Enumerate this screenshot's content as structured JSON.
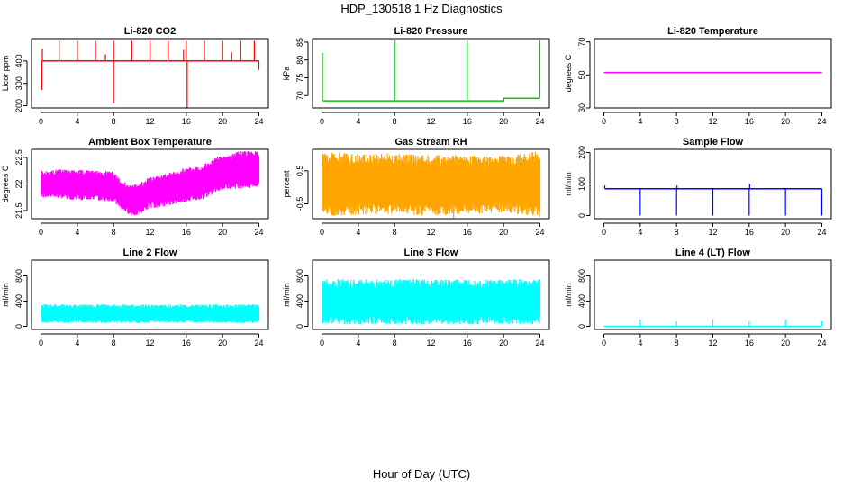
{
  "figure": {
    "title": "HDP_130518  1 Hz Diagnostics",
    "x_axis_title": "Hour of Day (UTC)"
  },
  "chart_data": [
    {
      "id": "co2",
      "type": "line",
      "title": "Li-820 CO2",
      "ylabel": "Licor ppm",
      "color": "#ff0000",
      "xlim": [
        0,
        24
      ],
      "xticks": [
        0,
        4,
        8,
        12,
        16,
        20,
        24
      ],
      "ylim": [
        190,
        500
      ],
      "yticks": [
        200,
        300,
        400
      ],
      "baseline": [
        [
          0.1,
          400
        ],
        [
          24,
          400
        ]
      ],
      "spikes": [
        {
          "x": 0.1,
          "from": 400,
          "to": 270
        },
        {
          "x": 0.15,
          "from": 400,
          "to": 455
        },
        {
          "x": 2.0,
          "from": 400,
          "to": 490
        },
        {
          "x": 4.0,
          "from": 400,
          "to": 490
        },
        {
          "x": 6.0,
          "from": 400,
          "to": 490
        },
        {
          "x": 7.1,
          "from": 400,
          "to": 430
        },
        {
          "x": 8.0,
          "from": 400,
          "to": 490
        },
        {
          "x": 8.0,
          "from": 400,
          "to": 210
        },
        {
          "x": 10.0,
          "from": 400,
          "to": 490
        },
        {
          "x": 12.0,
          "from": 400,
          "to": 490
        },
        {
          "x": 14.0,
          "from": 400,
          "to": 490
        },
        {
          "x": 15.7,
          "from": 400,
          "to": 450
        },
        {
          "x": 16.0,
          "from": 400,
          "to": 490
        },
        {
          "x": 16.1,
          "from": 400,
          "to": 190
        },
        {
          "x": 18.0,
          "from": 400,
          "to": 490
        },
        {
          "x": 20.0,
          "from": 400,
          "to": 490
        },
        {
          "x": 21.0,
          "from": 400,
          "to": 440
        },
        {
          "x": 22.0,
          "from": 400,
          "to": 490
        },
        {
          "x": 23.5,
          "from": 400,
          "to": 490
        },
        {
          "x": 24.0,
          "from": 400,
          "to": 360
        }
      ]
    },
    {
      "id": "pressure",
      "type": "line",
      "title": "Li-820 Pressure",
      "ylabel": "kPa",
      "color": "#00cc00",
      "xlim": [
        0,
        24
      ],
      "xticks": [
        0,
        4,
        8,
        12,
        16,
        20,
        24
      ],
      "ylim": [
        66.5,
        86
      ],
      "yticks": [
        70,
        75,
        80,
        85
      ],
      "baseline": [
        [
          0.1,
          68.5
        ],
        [
          20.0,
          68.5
        ],
        [
          20.0,
          69.2
        ],
        [
          23.9,
          69.2
        ]
      ],
      "spikes": [
        {
          "x": 0.05,
          "from": 68.5,
          "to": 82
        },
        {
          "x": 8.0,
          "from": 68.5,
          "to": 85.5
        },
        {
          "x": 16.0,
          "from": 68.5,
          "to": 85.5
        },
        {
          "x": 24.0,
          "from": 69.2,
          "to": 85.5
        }
      ]
    },
    {
      "id": "temp820",
      "type": "line",
      "title": "Li-820 Temperature",
      "ylabel": "degrees C",
      "color": "#ff00ff",
      "xlim": [
        0,
        24
      ],
      "xticks": [
        0,
        4,
        8,
        12,
        16,
        20,
        24
      ],
      "ylim": [
        30,
        72
      ],
      "yticks": [
        30,
        50,
        70
      ],
      "baseline": [
        [
          0,
          51.5
        ],
        [
          24,
          51.5
        ]
      ],
      "spikes": []
    },
    {
      "id": "boxtemp",
      "type": "area",
      "title": "Ambient Box Temperature",
      "ylabel": "degrees C",
      "color": "#ff00ff",
      "xlim": [
        0,
        24
      ],
      "xticks": [
        0,
        4,
        8,
        12,
        16,
        20,
        24
      ],
      "ylim": [
        21.35,
        22.65
      ],
      "yticks": [
        21.5,
        22.0,
        22.5
      ],
      "band": {
        "x": [
          0,
          2,
          4,
          6,
          8,
          9,
          10,
          11,
          12,
          13,
          14,
          16,
          18,
          19,
          20,
          22,
          24
        ],
        "low": [
          21.8,
          21.78,
          21.75,
          21.75,
          21.72,
          21.55,
          21.45,
          21.5,
          21.6,
          21.62,
          21.65,
          21.72,
          21.78,
          21.88,
          21.95,
          21.98,
          22.0
        ],
        "high": [
          22.2,
          22.22,
          22.22,
          22.2,
          22.18,
          22.0,
          21.92,
          21.98,
          22.08,
          22.12,
          22.15,
          22.25,
          22.32,
          22.42,
          22.48,
          22.55,
          22.55
        ]
      },
      "spikes": []
    },
    {
      "id": "rh",
      "type": "area",
      "title": "Gas Stream RH",
      "ylabel": "percent",
      "color": "#ffa500",
      "xlim": [
        0,
        24
      ],
      "xticks": [
        0,
        4,
        8,
        12,
        16,
        20,
        24
      ],
      "ylim": [
        -0.95,
        1.15
      ],
      "yticks": [
        -0.5,
        0.5
      ],
      "band": {
        "x": [
          0,
          4,
          8,
          12,
          16,
          20,
          24
        ],
        "low": [
          -0.7,
          -0.65,
          -0.65,
          -0.7,
          -0.65,
          -0.6,
          -0.7
        ],
        "high": [
          0.9,
          0.85,
          0.85,
          0.8,
          0.8,
          0.8,
          0.9
        ]
      },
      "spikes": [
        {
          "x": 9.9,
          "from": 0.6,
          "to": 1.0
        },
        {
          "x": 14.5,
          "from": -0.5,
          "to": -0.95
        }
      ]
    },
    {
      "id": "sampleflow",
      "type": "line",
      "title": "Sample Flow",
      "ylabel": "ml/min",
      "color": "#0000ff",
      "xlim": [
        0,
        24
      ],
      "xticks": [
        0,
        4,
        8,
        12,
        16,
        20,
        24
      ],
      "ylim": [
        -10,
        210
      ],
      "yticks": [
        0,
        100,
        200
      ],
      "baseline": [
        [
          0.1,
          85
        ],
        [
          24,
          85
        ]
      ],
      "spikes": [
        {
          "x": 0.1,
          "from": 85,
          "to": 95
        },
        {
          "x": 4.0,
          "from": 85,
          "to": 0
        },
        {
          "x": 8.0,
          "from": 85,
          "to": 0
        },
        {
          "x": 8.05,
          "from": 85,
          "to": 95
        },
        {
          "x": 12.0,
          "from": 85,
          "to": 0
        },
        {
          "x": 16.0,
          "from": 85,
          "to": 0
        },
        {
          "x": 16.05,
          "from": 85,
          "to": 100
        },
        {
          "x": 20.0,
          "from": 85,
          "to": 0
        },
        {
          "x": 24.0,
          "from": 85,
          "to": 0
        }
      ]
    },
    {
      "id": "line2",
      "type": "area",
      "title": "Line 2 Flow",
      "ylabel": "ml/min",
      "color": "#00ffff",
      "xlim": [
        0,
        24
      ],
      "xticks": [
        0,
        4,
        8,
        12,
        16,
        20,
        24
      ],
      "ylim": [
        -50,
        1050
      ],
      "yticks": [
        0,
        400,
        800
      ],
      "band": {
        "x": [
          0.1,
          24
        ],
        "low": [
          80,
          80
        ],
        "high": [
          320,
          320
        ]
      },
      "gaps": [
        4.0,
        8.0,
        12.0,
        16.0,
        20.0
      ],
      "spikes": []
    },
    {
      "id": "line3",
      "type": "area",
      "title": "Line 3 Flow",
      "ylabel": "ml/min",
      "color": "#00ffff",
      "xlim": [
        0,
        24
      ],
      "xticks": [
        0,
        4,
        8,
        12,
        16,
        20,
        24
      ],
      "ylim": [
        -50,
        1050
      ],
      "yticks": [
        0,
        400,
        800
      ],
      "band": {
        "x": [
          0.1,
          24
        ],
        "low": [
          100,
          100
        ],
        "high": [
          680,
          680
        ]
      },
      "gaps": [
        4.0,
        8.0,
        12.0,
        16.0,
        20.0
      ],
      "spikes": []
    },
    {
      "id": "line4",
      "type": "line",
      "title": "Line 4 (LT) Flow",
      "ylabel": "ml/min",
      "color": "#00ffff",
      "xlim": [
        0,
        24
      ],
      "xticks": [
        0,
        4,
        8,
        12,
        16,
        20,
        24
      ],
      "ylim": [
        -50,
        1050
      ],
      "yticks": [
        0,
        400,
        800
      ],
      "baseline": [
        [
          0,
          0
        ],
        [
          24,
          0
        ]
      ],
      "spikes": [
        {
          "x": 4.0,
          "from": 0,
          "to": 110
        },
        {
          "x": 8.0,
          "from": 0,
          "to": 80
        },
        {
          "x": 12.0,
          "from": 0,
          "to": 110
        },
        {
          "x": 16.0,
          "from": 0,
          "to": 80
        },
        {
          "x": 20.0,
          "from": 0,
          "to": 110
        },
        {
          "x": 24.0,
          "from": 0,
          "to": 80
        }
      ]
    }
  ]
}
